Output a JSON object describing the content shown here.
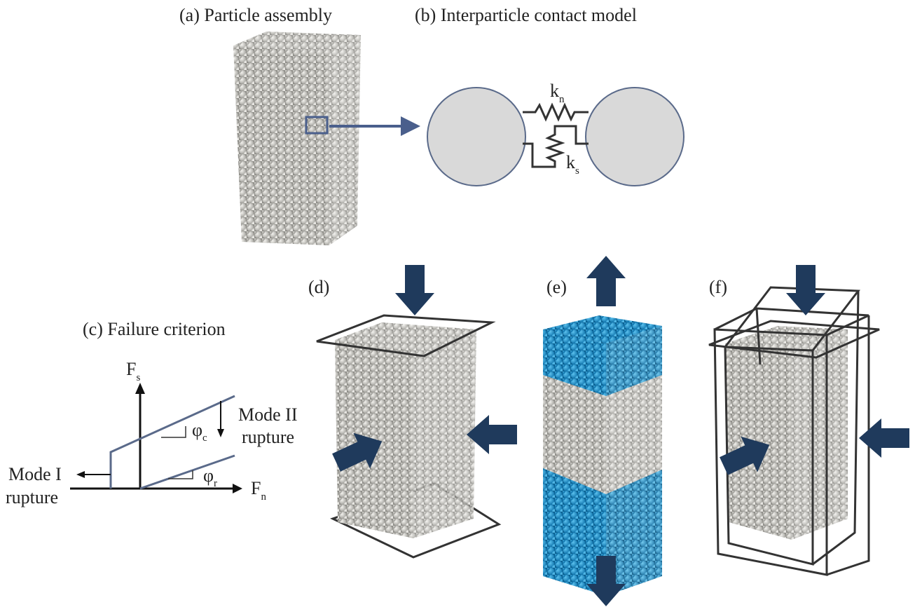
{
  "panels": [
    {
      "label": "(a)",
      "title": "Particle assembly"
    },
    {
      "label": "(b)",
      "title": "Interparticle contact model"
    },
    {
      "label": "(c)",
      "title": "Failure criterion"
    },
    {
      "label": "(d)"
    },
    {
      "label": "(e)"
    },
    {
      "label": "(f)"
    }
  ],
  "contact_model": {
    "normal_spring": {
      "symbol": "k",
      "subscript": "n"
    },
    "shear_spring": {
      "symbol": "k",
      "subscript": "s"
    }
  },
  "failure_criterion": {
    "y_axis": {
      "symbol": "F",
      "subscript": "s"
    },
    "x_axis": {
      "symbol": "F",
      "subscript": "n"
    },
    "peak_angle": {
      "symbol": "φ",
      "subscript": "c"
    },
    "residual_angle": {
      "symbol": "φ",
      "subscript": "r"
    },
    "mode_2": [
      "Mode II",
      "rupture"
    ],
    "mode_1": [
      "Mode I",
      "rupture"
    ]
  }
}
